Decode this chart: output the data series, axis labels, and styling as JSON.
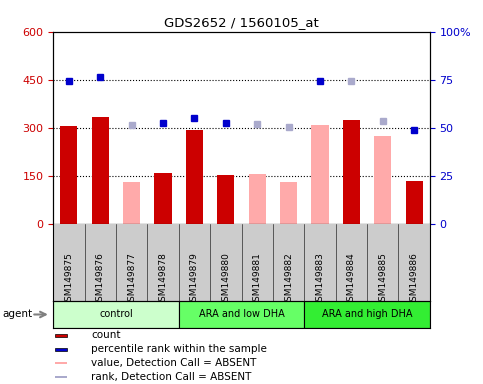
{
  "title": "GDS2652 / 1560105_at",
  "samples": [
    "GSM149875",
    "GSM149876",
    "GSM149877",
    "GSM149878",
    "GSM149879",
    "GSM149880",
    "GSM149881",
    "GSM149882",
    "GSM149883",
    "GSM149884",
    "GSM149885",
    "GSM149886"
  ],
  "groups": [
    {
      "label": "control",
      "start": 0,
      "end": 3,
      "color": "#ccffcc"
    },
    {
      "label": "ARA and low DHA",
      "start": 4,
      "end": 7,
      "color": "#66ff66"
    },
    {
      "label": "ARA and high DHA",
      "start": 8,
      "end": 11,
      "color": "#33ee33"
    }
  ],
  "count_values": [
    305,
    335,
    null,
    158,
    292,
    152,
    null,
    null,
    null,
    325,
    null,
    135
  ],
  "percentile_values": [
    445,
    460,
    null,
    315,
    330,
    315,
    null,
    null,
    448,
    null,
    null,
    292
  ],
  "absent_value_vals": [
    null,
    null,
    130,
    null,
    null,
    null,
    155,
    130,
    310,
    null,
    275,
    null
  ],
  "absent_rank_vals": [
    null,
    null,
    308,
    null,
    null,
    null,
    312,
    302,
    null,
    448,
    320,
    null
  ],
  "ylim_left": [
    0,
    600
  ],
  "yticks_left": [
    0,
    150,
    300,
    450,
    600
  ],
  "yticklabels_left": [
    "0",
    "150",
    "300",
    "450",
    "600"
  ],
  "yticks_right_pos": [
    0,
    150,
    300,
    450,
    600
  ],
  "yticklabels_right": [
    "0",
    "25",
    "50",
    "75",
    "100%"
  ],
  "hlines": [
    150,
    300,
    450
  ],
  "bar_width": 0.55,
  "count_color": "#cc0000",
  "percentile_color": "#0000cc",
  "absent_value_color": "#ffaaaa",
  "absent_rank_color": "#aaaacc",
  "bg_color": "#cccccc",
  "plot_bg": "#ffffff",
  "left_label_color": "#cc0000",
  "right_label_color": "#0000cc"
}
